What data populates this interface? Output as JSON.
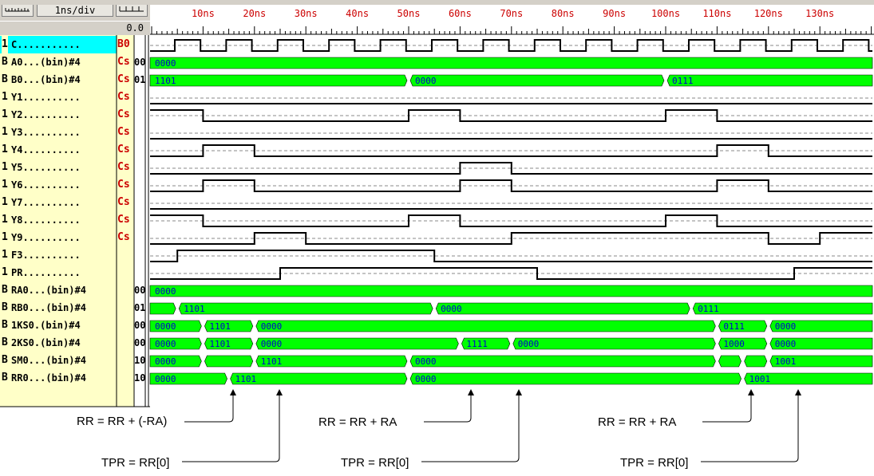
{
  "toolbar": {
    "scale_label": "1ns/div",
    "time_offset": "0.0"
  },
  "time_ticks": [
    "10ns",
    "20ns",
    "30ns",
    "40ns",
    "50ns",
    "60ns",
    "70ns",
    "80ns",
    "90ns",
    "100ns",
    "110ns",
    "120ns",
    "130ns"
  ],
  "signals": [
    {
      "type": "1",
      "name": "C...........",
      "flag": "B0",
      "val": "",
      "sel": true
    },
    {
      "type": "B",
      "name": "A0...(bin)#4",
      "flag": "Cs",
      "val": "00"
    },
    {
      "type": "B",
      "name": "B0...(bin)#4",
      "flag": "Cs",
      "val": "01"
    },
    {
      "type": "1",
      "name": "Y1..........",
      "flag": "Cs",
      "val": ""
    },
    {
      "type": "1",
      "name": "Y2..........",
      "flag": "Cs",
      "val": ""
    },
    {
      "type": "1",
      "name": "Y3..........",
      "flag": "Cs",
      "val": ""
    },
    {
      "type": "1",
      "name": "Y4..........",
      "flag": "Cs",
      "val": ""
    },
    {
      "type": "1",
      "name": "Y5..........",
      "flag": "Cs",
      "val": ""
    },
    {
      "type": "1",
      "name": "Y6..........",
      "flag": "Cs",
      "val": ""
    },
    {
      "type": "1",
      "name": "Y7..........",
      "flag": "Cs",
      "val": ""
    },
    {
      "type": "1",
      "name": "Y8..........",
      "flag": "Cs",
      "val": ""
    },
    {
      "type": "1",
      "name": "Y9..........",
      "flag": "Cs",
      "val": ""
    },
    {
      "type": "1",
      "name": "F3..........",
      "flag": "",
      "val": ""
    },
    {
      "type": "1",
      "name": "PR..........",
      "flag": "",
      "val": ""
    },
    {
      "type": "B",
      "name": "RA0...(bin)#4",
      "flag": "",
      "val": "00"
    },
    {
      "type": "B",
      "name": "RB0...(bin)#4",
      "flag": "",
      "val": "01"
    },
    {
      "type": "B",
      "name": "1KS0.(bin)#4",
      "flag": "",
      "val": "00"
    },
    {
      "type": "B",
      "name": "2KS0.(bin)#4",
      "flag": "",
      "val": "00"
    },
    {
      "type": "B",
      "name": "SM0...(bin)#4",
      "flag": "",
      "val": "10"
    },
    {
      "type": "B",
      "name": "RR0...(bin)#4",
      "flag": "",
      "val": "10"
    }
  ],
  "bus_values": {
    "A0": [
      "0000"
    ],
    "B0": [
      "1101",
      "0000",
      "0111"
    ],
    "RA0": [
      "0000"
    ],
    "RB0": [
      "1101",
      "0000",
      "0111"
    ],
    "1KS0": [
      "0000",
      "1101",
      "0000",
      "0111",
      "0000"
    ],
    "2KS0": [
      "0000",
      "1101",
      "0000",
      "1111",
      "0000",
      "1000",
      "0000"
    ],
    "SM0": [
      "0000",
      "1101",
      "0000",
      "1001"
    ],
    "RR0": [
      "0000",
      "1101",
      "0000",
      "1001"
    ]
  },
  "annotations": [
    {
      "text": "RR = RR + (-RA)"
    },
    {
      "text": "TPR = RR[0]"
    },
    {
      "text": "RR = RR + RA"
    },
    {
      "text": "TPR = RR[0]"
    },
    {
      "text": "RR = RR + RA"
    },
    {
      "text": "TPR = RR[0]"
    }
  ],
  "colors": {
    "bus_fill": "#00ff00",
    "name_bg": "#ffffc8",
    "selected_bg": "#00ffff",
    "flag_text": "#cc0000",
    "bus_text": "#0000cc"
  }
}
